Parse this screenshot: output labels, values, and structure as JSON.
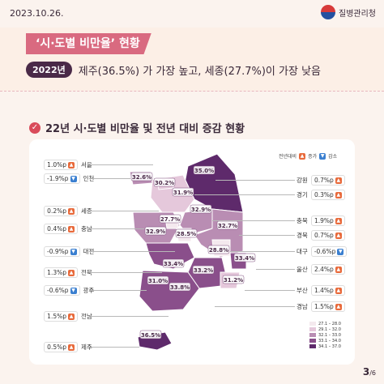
{
  "header": {
    "date": "2023.10.26.",
    "agency": "질병관리청",
    "banner_title": "‘시·도별 비만율’ 현황",
    "year_pill": "2022년",
    "subtitle": "제주(36.5%) 가 가장 높고, 세종(27.7%)이 가장 낮음"
  },
  "section": {
    "title": "22년 시·도별 비만율 및 전년 대비 증감 현황"
  },
  "legend": {
    "label": "전년대비",
    "up": "증가",
    "down": "감소",
    "up_color": "#e86a3b",
    "down_color": "#3a7fd0"
  },
  "scale": [
    {
      "range": "27.1 – 28.0",
      "color": "#f4e9ee"
    },
    {
      "range": "29.1 – 32.0",
      "color": "#e5c8db"
    },
    {
      "range": "32.1 – 33.0",
      "color": "#b98db3"
    },
    {
      "range": "33.1 – 34.0",
      "color": "#8a4f8b"
    },
    {
      "range": "34.1 – 37.0",
      "color": "#5e2a6b"
    }
  ],
  "page": {
    "current": "3",
    "total": "6"
  },
  "chart_data": {
    "type": "choropleth",
    "title": "22년 시·도별 비만율 및 전년 대비 증감 현황",
    "unit": "%",
    "regions": [
      {
        "name": "서울",
        "rate": 30.2,
        "change": "1.0%p",
        "direction": "up"
      },
      {
        "name": "인천",
        "rate": 32.6,
        "change": "-1.9%p",
        "direction": "down"
      },
      {
        "name": "세종",
        "rate": 27.7,
        "change": "0.2%p",
        "direction": "up"
      },
      {
        "name": "충남",
        "rate": 32.9,
        "change": "0.4%p",
        "direction": "up"
      },
      {
        "name": "대전",
        "rate": 28.5,
        "change": "-0.9%p",
        "direction": "down"
      },
      {
        "name": "전북",
        "rate": 33.4,
        "change": "1.3%p",
        "direction": "up"
      },
      {
        "name": "광주",
        "rate": 31.0,
        "change": "-0.6%p",
        "direction": "down"
      },
      {
        "name": "전남",
        "rate": 33.8,
        "change": "1.5%p",
        "direction": "up"
      },
      {
        "name": "제주",
        "rate": 36.5,
        "change": "0.5%p",
        "direction": "up"
      },
      {
        "name": "강원",
        "rate": 35.0,
        "change": "0.7%p",
        "direction": "up"
      },
      {
        "name": "경기",
        "rate": 31.9,
        "change": "0.3%p",
        "direction": "up"
      },
      {
        "name": "충북",
        "rate": 32.9,
        "change": "1.9%p",
        "direction": "up"
      },
      {
        "name": "경북",
        "rate": 32.7,
        "change": "0.7%p",
        "direction": "up"
      },
      {
        "name": "대구",
        "rate": 28.8,
        "change": "-0.6%p",
        "direction": "down"
      },
      {
        "name": "울산",
        "rate": 33.4,
        "change": "2.4%p",
        "direction": "up"
      },
      {
        "name": "부산",
        "rate": 31.2,
        "change": "1.4%p",
        "direction": "up"
      },
      {
        "name": "경남",
        "rate": 33.2,
        "change": "1.5%p",
        "direction": "up"
      }
    ]
  }
}
